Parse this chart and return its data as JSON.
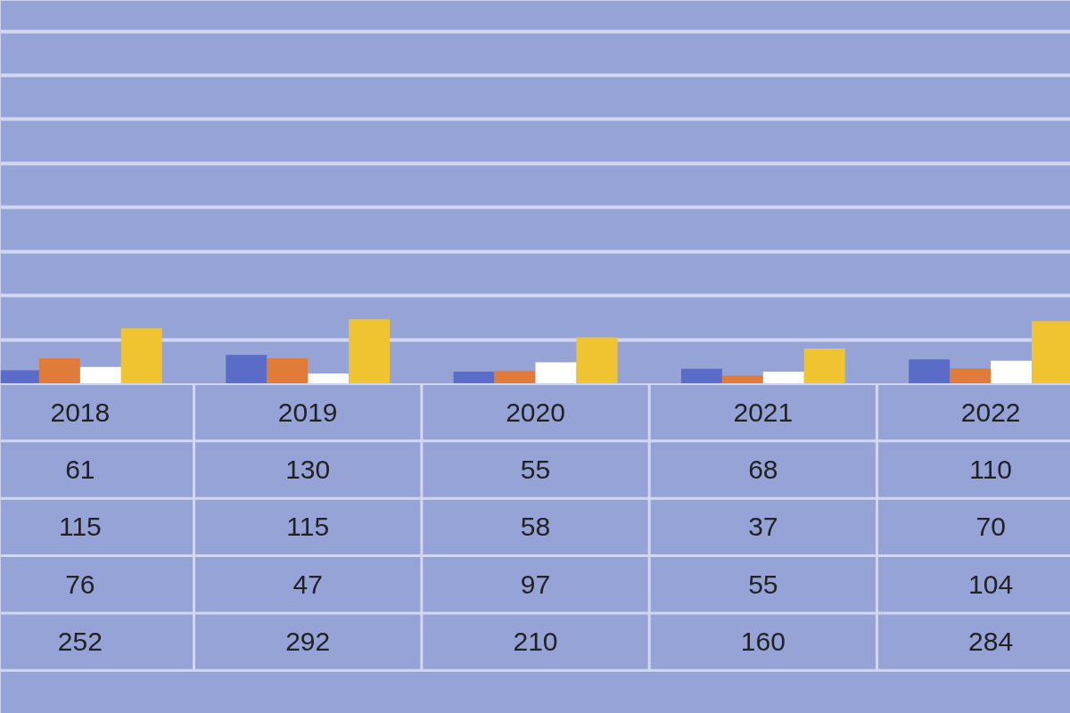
{
  "chart_data": {
    "type": "bar",
    "categories": [
      "2018",
      "2019",
      "2020",
      "2021",
      "2022"
    ],
    "series": [
      {
        "color": "#5b6bc8",
        "values": [
          61,
          130,
          55,
          68,
          110
        ]
      },
      {
        "color": "#e07b39",
        "values": [
          115,
          115,
          58,
          37,
          70
        ]
      },
      {
        "color": "#ffffff",
        "values": [
          76,
          47,
          97,
          55,
          104
        ]
      },
      {
        "color": "#f0c430",
        "values": [
          252,
          292,
          210,
          160,
          284
        ]
      }
    ],
    "ylim": [
      0,
      1740
    ],
    "yticks": [
      {
        "value": 200,
        "label": null
      },
      {
        "value": 400,
        "label": null
      },
      {
        "value": 600,
        "label": null
      },
      {
        "value": 800,
        "label": null
      },
      {
        "value": 1000,
        "label": null
      },
      {
        "value": 1200,
        "label": null
      },
      {
        "value": 1400,
        "label": null
      },
      {
        "value": 1600,
        "label": null
      }
    ],
    "grid": "y",
    "data_labels": true,
    "tick_labels": false
  }
}
